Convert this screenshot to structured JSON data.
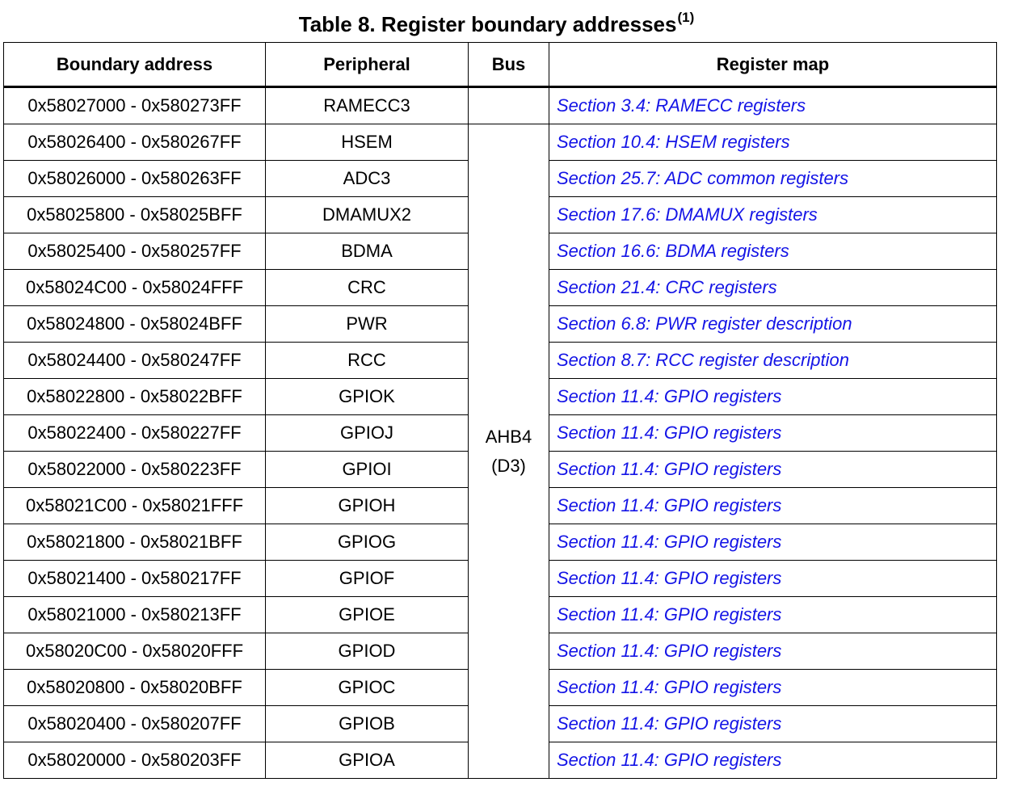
{
  "table": {
    "title": "Table 8. Register boundary addresses",
    "title_footnote": "(1)",
    "headers": [
      "Boundary address",
      "Peripheral",
      "Bus",
      "Register map"
    ],
    "bus_group": {
      "line1": "AHB4",
      "line2": "(D3)"
    },
    "rows": [
      {
        "address": "0x58027000 - 0x580273FF",
        "peripheral": "RAMECC3",
        "bus": "",
        "register_map": "Section 3.4: RAMECC registers"
      },
      {
        "address": "0x58026400 - 0x580267FF",
        "peripheral": "HSEM",
        "register_map": "Section 10.4: HSEM registers"
      },
      {
        "address": "0x58026000 - 0x580263FF",
        "peripheral": "ADC3",
        "register_map": "Section 25.7: ADC common registers"
      },
      {
        "address": "0x58025800 - 0x58025BFF",
        "peripheral": "DMAMUX2",
        "register_map": "Section 17.6: DMAMUX registers"
      },
      {
        "address": "0x58025400 - 0x580257FF",
        "peripheral": "BDMA",
        "register_map": "Section 16.6: BDMA registers"
      },
      {
        "address": "0x58024C00 - 0x58024FFF",
        "peripheral": "CRC",
        "register_map": "Section 21.4: CRC registers"
      },
      {
        "address": "0x58024800 - 0x58024BFF",
        "peripheral": "PWR",
        "register_map": "Section 6.8: PWR register description"
      },
      {
        "address": "0x58024400 - 0x580247FF",
        "peripheral": "RCC",
        "register_map": "Section 8.7: RCC register description"
      },
      {
        "address": "0x58022800 - 0x58022BFF",
        "peripheral": "GPIOK",
        "register_map": "Section 11.4: GPIO registers"
      },
      {
        "address": "0x58022400 - 0x580227FF",
        "peripheral": "GPIOJ",
        "register_map": "Section 11.4: GPIO registers"
      },
      {
        "address": "0x58022000 - 0x580223FF",
        "peripheral": "GPIOI",
        "register_map": "Section 11.4: GPIO registers"
      },
      {
        "address": "0x58021C00 - 0x58021FFF",
        "peripheral": "GPIOH",
        "register_map": "Section 11.4: GPIO registers"
      },
      {
        "address": "0x58021800 - 0x58021BFF",
        "peripheral": "GPIOG",
        "register_map": "Section 11.4: GPIO registers"
      },
      {
        "address": "0x58021400 - 0x580217FF",
        "peripheral": "GPIOF",
        "register_map": "Section 11.4: GPIO registers"
      },
      {
        "address": "0x58021000 - 0x580213FF",
        "peripheral": "GPIOE",
        "register_map": "Section 11.4: GPIO registers"
      },
      {
        "address": "0x58020C00 - 0x58020FFF",
        "peripheral": "GPIOD",
        "register_map": "Section 11.4: GPIO registers"
      },
      {
        "address": "0x58020800 - 0x58020BFF",
        "peripheral": "GPIOC",
        "register_map": "Section 11.4: GPIO registers"
      },
      {
        "address": "0x58020400 - 0x580207FF",
        "peripheral": "GPIOB",
        "register_map": "Section 11.4: GPIO registers"
      },
      {
        "address": "0x58020000 - 0x580203FF",
        "peripheral": "GPIOA",
        "register_map": "Section 11.4: GPIO registers"
      }
    ]
  },
  "colors": {
    "link": "#1414e6",
    "text": "#000000",
    "background": "#ffffff"
  }
}
